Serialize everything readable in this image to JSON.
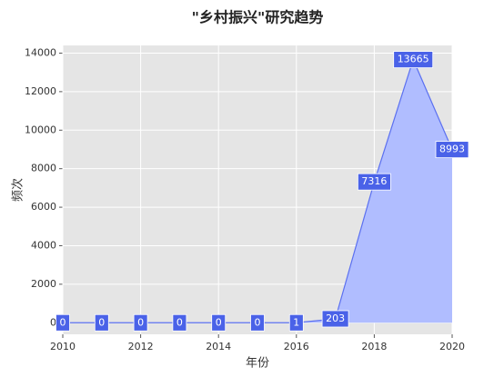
{
  "chart_data": {
    "type": "area",
    "title": "\"乡村振兴\"研究趋势",
    "xlabel": "年份",
    "ylabel": "频次",
    "x": [
      2010,
      2011,
      2012,
      2013,
      2014,
      2015,
      2016,
      2017,
      2018,
      2019,
      2020
    ],
    "values": [
      0,
      0,
      0,
      0,
      0,
      0,
      1,
      203,
      7316,
      13665,
      8993
    ],
    "color": "#5b70f0",
    "fill_color": "#b0bdff",
    "label_color": "#4a62e8",
    "xlim": [
      2010,
      2020
    ],
    "xticks": [
      2010,
      2012,
      2014,
      2016,
      2018,
      2020
    ],
    "ylim": [
      -600,
      14400
    ],
    "yticks": [
      0,
      2000,
      4000,
      6000,
      8000,
      10000,
      12000,
      14000
    ],
    "grid": true
  }
}
